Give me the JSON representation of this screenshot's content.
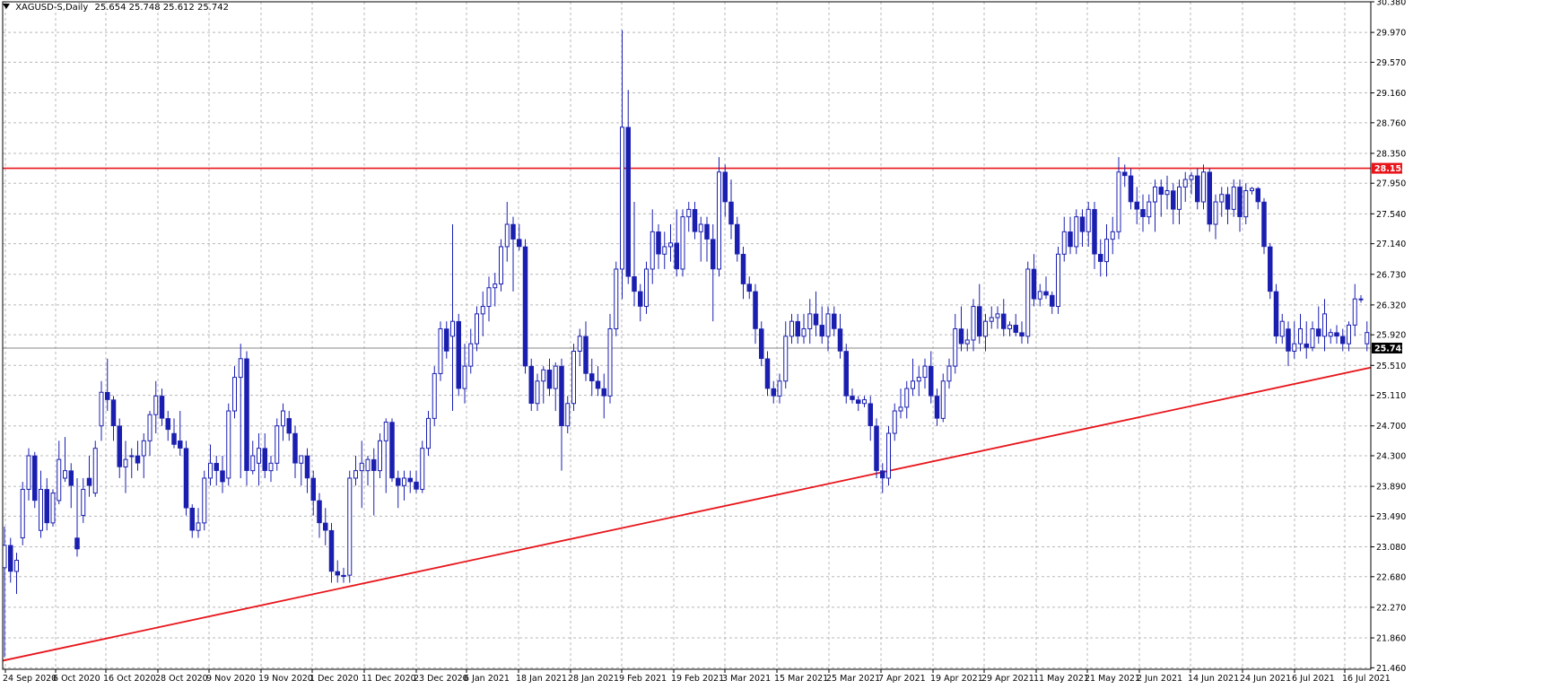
{
  "chart_data": {
    "type": "candlestick",
    "symbol_label": "XAGUSD-S,Daily",
    "ohlc_label": "25.654 25.748 25.612 25.742",
    "ylim": [
      21.44,
      30.38
    ],
    "y_ticks": [
      "30.380",
      "29.970",
      "29.570",
      "29.160",
      "28.760",
      "28.350",
      "27.950",
      "27.540",
      "27.140",
      "26.730",
      "26.320",
      "25.920",
      "25.510",
      "25.110",
      "24.700",
      "24.300",
      "23.890",
      "23.490",
      "23.080",
      "22.680",
      "22.270",
      "21.860",
      "21.460"
    ],
    "x_ticks": [
      "24 Sep 2020",
      "6 Oct 2020",
      "16 Oct 2020",
      "28 Oct 2020",
      "9 Nov 2020",
      "19 Nov 2020",
      "1 Dec 2020",
      "11 Dec 2020",
      "23 Dec 2020",
      "6 Jan 2021",
      "18 Jan 2021",
      "28 Jan 2021",
      "9 Feb 2021",
      "19 Feb 2021",
      "3 Mar 2021",
      "15 Mar 2021",
      "25 Mar 2021",
      "7 Apr 2021",
      "19 Apr 2021",
      "29 Apr 2021",
      "11 May 2021",
      "21 May 2021",
      "2 Jun 2021",
      "14 Jun 2021",
      "24 Jun 2021",
      "6 Jul 2021",
      "16 Jul 2021"
    ],
    "resistance_level": {
      "value": 28.15,
      "label": "28.153"
    },
    "current_price": {
      "value": 25.742,
      "label": "25.742"
    },
    "trendline": {
      "start": {
        "bar": 0,
        "price": 21.56
      },
      "end": {
        "bar": 225,
        "price": 25.47
      }
    },
    "grid": true,
    "colors": {
      "candle": "#1a1fb0",
      "resistance": "#e8141a",
      "trendline": "#e8141a",
      "grid": "#b8b8b8",
      "price_line": "#8a8a8a"
    },
    "ohlc": [
      [
        22.8,
        23.35,
        21.6,
        23.1
      ],
      [
        23.1,
        23.2,
        22.6,
        22.75
      ],
      [
        22.75,
        23.0,
        22.45,
        22.9
      ],
      [
        23.2,
        23.95,
        23.1,
        23.85
      ],
      [
        23.85,
        24.4,
        23.7,
        24.3
      ],
      [
        24.3,
        24.35,
        23.6,
        23.7
      ],
      [
        23.3,
        24.1,
        23.2,
        23.85
      ],
      [
        23.85,
        24.0,
        23.3,
        23.4
      ],
      [
        23.4,
        23.85,
        23.35,
        23.8
      ],
      [
        23.7,
        24.5,
        23.65,
        24.25
      ],
      [
        24.0,
        24.55,
        23.95,
        24.1
      ],
      [
        24.1,
        24.2,
        23.6,
        23.9
      ],
      [
        23.2,
        24.0,
        22.95,
        23.05
      ],
      [
        23.5,
        24.0,
        23.4,
        23.85
      ],
      [
        24.0,
        24.3,
        23.75,
        23.9
      ],
      [
        23.8,
        24.5,
        23.75,
        24.4
      ],
      [
        24.7,
        25.3,
        24.5,
        25.15
      ],
      [
        25.15,
        25.6,
        24.9,
        25.05
      ],
      [
        25.05,
        25.1,
        24.5,
        24.7
      ],
      [
        24.7,
        24.8,
        24.0,
        24.15
      ],
      [
        24.15,
        24.5,
        23.8,
        24.25
      ],
      [
        24.3,
        24.4,
        24.0,
        24.3
      ],
      [
        24.3,
        24.5,
        24.1,
        24.2
      ],
      [
        24.3,
        24.6,
        24.0,
        24.5
      ],
      [
        24.5,
        24.9,
        24.3,
        24.85
      ],
      [
        24.85,
        25.3,
        24.6,
        25.1
      ],
      [
        25.1,
        25.2,
        24.7,
        24.8
      ],
      [
        24.8,
        24.9,
        24.5,
        24.65
      ],
      [
        24.6,
        24.8,
        24.4,
        24.45
      ],
      [
        24.5,
        24.9,
        24.3,
        24.4
      ],
      [
        24.4,
        24.5,
        23.5,
        23.6
      ],
      [
        23.6,
        23.65,
        23.2,
        23.3
      ],
      [
        23.3,
        23.6,
        23.2,
        23.4
      ],
      [
        23.4,
        24.1,
        23.3,
        24.0
      ],
      [
        24.0,
        24.45,
        23.9,
        24.2
      ],
      [
        24.2,
        24.3,
        23.9,
        24.1
      ],
      [
        24.1,
        24.3,
        23.8,
        23.95
      ],
      [
        24.0,
        25.0,
        23.9,
        24.9
      ],
      [
        24.9,
        25.5,
        24.8,
        25.35
      ],
      [
        25.35,
        25.8,
        24.0,
        25.6
      ],
      [
        25.6,
        25.7,
        23.9,
        24.1
      ],
      [
        24.1,
        24.5,
        24.05,
        24.3
      ],
      [
        24.2,
        24.6,
        23.9,
        24.4
      ],
      [
        24.4,
        24.6,
        24.0,
        24.1
      ],
      [
        24.1,
        24.3,
        23.95,
        24.2
      ],
      [
        24.2,
        24.8,
        24.1,
        24.7
      ],
      [
        24.7,
        25.0,
        24.5,
        24.9
      ],
      [
        24.8,
        24.9,
        24.5,
        24.6
      ],
      [
        24.6,
        24.7,
        24.0,
        24.2
      ],
      [
        24.2,
        24.3,
        23.9,
        24.3
      ],
      [
        24.3,
        24.4,
        23.8,
        24.0
      ],
      [
        24.0,
        24.1,
        23.5,
        23.7
      ],
      [
        23.7,
        23.8,
        23.2,
        23.4
      ],
      [
        23.4,
        23.6,
        23.1,
        23.3
      ],
      [
        23.3,
        23.4,
        22.6,
        22.75
      ],
      [
        22.75,
        22.9,
        22.6,
        22.7
      ],
      [
        22.7,
        22.8,
        22.6,
        22.68
      ],
      [
        22.7,
        24.1,
        22.6,
        24.0
      ],
      [
        24.0,
        24.3,
        23.9,
        24.1
      ],
      [
        24.1,
        24.5,
        23.6,
        24.2
      ],
      [
        24.1,
        24.3,
        23.9,
        24.25
      ],
      [
        24.25,
        24.4,
        23.5,
        24.1
      ],
      [
        24.1,
        24.6,
        24.0,
        24.5
      ],
      [
        24.5,
        24.8,
        23.8,
        24.75
      ],
      [
        24.75,
        24.8,
        23.95,
        24.0
      ],
      [
        24.0,
        24.1,
        23.6,
        23.9
      ],
      [
        23.9,
        24.1,
        23.7,
        24.0
      ],
      [
        24.0,
        24.1,
        23.8,
        23.95
      ],
      [
        23.95,
        24.1,
        23.8,
        23.85
      ],
      [
        23.85,
        24.5,
        23.8,
        24.4
      ],
      [
        24.4,
        24.9,
        24.3,
        24.8
      ],
      [
        24.8,
        25.5,
        24.7,
        25.4
      ],
      [
        25.4,
        26.1,
        25.3,
        26.0
      ],
      [
        26.0,
        26.1,
        25.6,
        25.7
      ],
      [
        25.9,
        27.4,
        24.9,
        26.1
      ],
      [
        26.1,
        26.2,
        25.1,
        25.2
      ],
      [
        25.2,
        25.8,
        25.0,
        25.5
      ],
      [
        25.5,
        26.0,
        25.4,
        25.8
      ],
      [
        25.8,
        26.3,
        25.7,
        26.2
      ],
      [
        26.2,
        26.5,
        25.9,
        26.3
      ],
      [
        26.3,
        26.7,
        26.1,
        26.55
      ],
      [
        26.55,
        26.75,
        26.3,
        26.6
      ],
      [
        26.6,
        27.2,
        26.5,
        27.1
      ],
      [
        27.1,
        27.7,
        26.9,
        27.4
      ],
      [
        27.4,
        27.5,
        26.5,
        27.2
      ],
      [
        27.2,
        27.4,
        27.05,
        27.1
      ],
      [
        27.1,
        27.2,
        25.4,
        25.5
      ],
      [
        25.5,
        25.6,
        24.9,
        25.0
      ],
      [
        25.0,
        25.4,
        24.9,
        25.3
      ],
      [
        25.3,
        25.5,
        25.0,
        25.45
      ],
      [
        25.45,
        25.6,
        25.1,
        25.2
      ],
      [
        25.2,
        25.55,
        24.9,
        25.5
      ],
      [
        25.5,
        25.6,
        24.1,
        24.7
      ],
      [
        24.7,
        25.1,
        24.6,
        25.0
      ],
      [
        25.0,
        25.8,
        24.9,
        25.7
      ],
      [
        25.7,
        26.0,
        25.5,
        25.9
      ],
      [
        25.9,
        26.1,
        25.3,
        25.4
      ],
      [
        25.4,
        25.6,
        25.1,
        25.3
      ],
      [
        25.3,
        25.5,
        25.1,
        25.2
      ],
      [
        25.2,
        25.4,
        24.8,
        25.1
      ],
      [
        25.1,
        26.2,
        25.0,
        26.0
      ],
      [
        26.0,
        26.9,
        25.9,
        26.8
      ],
      [
        26.8,
        30.0,
        26.4,
        28.7
      ],
      [
        28.7,
        29.2,
        26.6,
        26.7
      ],
      [
        26.7,
        27.7,
        26.3,
        26.5
      ],
      [
        26.5,
        26.6,
        26.1,
        26.3
      ],
      [
        26.3,
        26.9,
        26.2,
        26.8
      ],
      [
        26.8,
        27.6,
        26.6,
        27.3
      ],
      [
        27.3,
        27.4,
        26.8,
        27.0
      ],
      [
        27.0,
        27.3,
        26.8,
        27.1
      ],
      [
        27.1,
        27.4,
        26.9,
        27.15
      ],
      [
        27.15,
        27.6,
        26.7,
        26.8
      ],
      [
        26.8,
        27.6,
        26.7,
        27.5
      ],
      [
        27.5,
        27.7,
        27.3,
        27.6
      ],
      [
        27.6,
        27.7,
        27.2,
        27.3
      ],
      [
        27.3,
        27.5,
        26.9,
        27.4
      ],
      [
        27.4,
        27.5,
        26.9,
        27.2
      ],
      [
        27.2,
        27.4,
        26.1,
        26.8
      ],
      [
        26.8,
        28.3,
        26.7,
        28.1
      ],
      [
        28.1,
        28.2,
        27.5,
        27.7
      ],
      [
        27.7,
        28.0,
        27.2,
        27.4
      ],
      [
        27.4,
        27.5,
        26.9,
        27.0
      ],
      [
        27.0,
        27.1,
        26.4,
        26.6
      ],
      [
        26.6,
        26.7,
        26.4,
        26.5
      ],
      [
        26.5,
        26.6,
        25.8,
        26.0
      ],
      [
        26.0,
        26.1,
        25.5,
        25.6
      ],
      [
        25.6,
        25.7,
        25.1,
        25.2
      ],
      [
        25.2,
        25.3,
        25.0,
        25.1
      ],
      [
        25.1,
        25.4,
        25.0,
        25.3
      ],
      [
        25.3,
        26.1,
        25.2,
        25.9
      ],
      [
        25.9,
        26.2,
        25.8,
        26.1
      ],
      [
        26.1,
        26.2,
        25.8,
        25.9
      ],
      [
        25.9,
        26.2,
        25.8,
        26.0
      ],
      [
        26.0,
        26.4,
        25.8,
        26.2
      ],
      [
        26.2,
        26.5,
        25.9,
        26.05
      ],
      [
        26.05,
        26.3,
        25.8,
        25.9
      ],
      [
        25.9,
        26.3,
        25.7,
        26.2
      ],
      [
        26.2,
        26.3,
        25.9,
        26.0
      ],
      [
        26.0,
        26.2,
        25.6,
        25.7
      ],
      [
        25.7,
        25.8,
        25.0,
        25.1
      ],
      [
        25.1,
        25.2,
        25.0,
        25.05
      ],
      [
        25.05,
        25.1,
        24.9,
        25.0
      ],
      [
        25.0,
        25.1,
        24.95,
        25.05
      ],
      [
        25.0,
        25.1,
        24.5,
        24.7
      ],
      [
        24.7,
        24.8,
        24.0,
        24.1
      ],
      [
        24.1,
        24.2,
        23.8,
        24.0
      ],
      [
        24.0,
        24.7,
        23.9,
        24.6
      ],
      [
        24.6,
        25.0,
        24.5,
        24.9
      ],
      [
        24.9,
        25.2,
        24.8,
        24.95
      ],
      [
        24.95,
        25.3,
        24.8,
        25.2
      ],
      [
        25.2,
        25.6,
        25.1,
        25.3
      ],
      [
        25.3,
        25.5,
        25.1,
        25.35
      ],
      [
        25.35,
        25.6,
        25.2,
        25.5
      ],
      [
        25.5,
        25.7,
        25.0,
        25.1
      ],
      [
        25.1,
        25.2,
        24.7,
        24.8
      ],
      [
        24.8,
        25.4,
        24.75,
        25.3
      ],
      [
        25.3,
        25.6,
        25.2,
        25.5
      ],
      [
        25.5,
        26.2,
        25.4,
        26.0
      ],
      [
        26.0,
        26.3,
        25.7,
        25.8
      ],
      [
        25.8,
        26.0,
        25.7,
        25.85
      ],
      [
        25.85,
        26.4,
        25.7,
        26.3
      ],
      [
        26.3,
        26.6,
        25.8,
        25.9
      ],
      [
        25.9,
        26.2,
        25.7,
        26.1
      ],
      [
        26.1,
        26.3,
        26.0,
        26.15
      ],
      [
        26.15,
        26.3,
        26.0,
        26.2
      ],
      [
        26.2,
        26.4,
        25.9,
        26.0
      ],
      [
        26.0,
        26.1,
        25.9,
        26.05
      ],
      [
        26.05,
        26.2,
        25.9,
        25.95
      ],
      [
        25.95,
        26.1,
        25.8,
        25.9
      ],
      [
        25.9,
        26.9,
        25.8,
        26.8
      ],
      [
        26.8,
        27.0,
        26.3,
        26.4
      ],
      [
        26.4,
        26.6,
        26.3,
        26.5
      ],
      [
        26.5,
        26.7,
        26.4,
        26.45
      ],
      [
        26.45,
        26.5,
        26.2,
        26.3
      ],
      [
        26.3,
        27.1,
        26.2,
        27.0
      ],
      [
        27.0,
        27.5,
        26.9,
        27.3
      ],
      [
        27.3,
        27.5,
        27.0,
        27.1
      ],
      [
        27.1,
        27.6,
        27.0,
        27.5
      ],
      [
        27.5,
        27.6,
        27.1,
        27.3
      ],
      [
        27.3,
        27.7,
        27.1,
        27.6
      ],
      [
        27.6,
        27.7,
        26.8,
        27.0
      ],
      [
        27.0,
        27.2,
        26.7,
        26.9
      ],
      [
        26.9,
        27.4,
        26.7,
        27.2
      ],
      [
        27.2,
        27.5,
        27.0,
        27.3
      ],
      [
        27.3,
        28.3,
        27.2,
        28.1
      ],
      [
        28.1,
        28.2,
        27.9,
        28.05
      ],
      [
        28.05,
        28.15,
        27.6,
        27.7
      ],
      [
        27.7,
        27.9,
        27.4,
        27.6
      ],
      [
        27.6,
        27.8,
        27.3,
        27.5
      ],
      [
        27.5,
        27.8,
        27.4,
        27.7
      ],
      [
        27.7,
        28.0,
        27.3,
        27.9
      ],
      [
        27.9,
        28.0,
        27.5,
        27.8
      ],
      [
        27.8,
        28.05,
        27.6,
        27.85
      ],
      [
        27.85,
        27.95,
        27.4,
        27.6
      ],
      [
        27.6,
        28.0,
        27.4,
        27.9
      ],
      [
        27.9,
        28.1,
        27.7,
        28.0
      ],
      [
        28.0,
        28.1,
        27.8,
        28.05
      ],
      [
        28.05,
        28.15,
        27.6,
        27.7
      ],
      [
        27.7,
        28.2,
        27.6,
        28.1
      ],
      [
        28.1,
        28.15,
        27.3,
        27.4
      ],
      [
        27.4,
        27.8,
        27.2,
        27.7
      ],
      [
        27.7,
        27.9,
        27.5,
        27.8
      ],
      [
        27.8,
        27.9,
        27.4,
        27.6
      ],
      [
        27.6,
        28.0,
        27.5,
        27.9
      ],
      [
        27.9,
        28.0,
        27.3,
        27.5
      ],
      [
        27.5,
        27.95,
        27.4,
        27.85
      ],
      [
        27.85,
        27.9,
        27.8,
        27.88
      ],
      [
        27.88,
        27.9,
        27.6,
        27.7
      ],
      [
        27.7,
        27.75,
        27.0,
        27.1
      ],
      [
        27.1,
        27.15,
        26.4,
        26.5
      ],
      [
        26.5,
        26.6,
        25.8,
        25.9
      ],
      [
        25.9,
        26.2,
        25.8,
        26.1
      ],
      [
        26.0,
        26.1,
        25.5,
        25.7
      ],
      [
        25.7,
        26.1,
        25.6,
        25.8
      ],
      [
        25.8,
        26.2,
        25.7,
        26.0
      ],
      [
        25.8,
        26.1,
        25.6,
        25.75
      ],
      [
        25.75,
        26.1,
        25.7,
        26.0
      ],
      [
        26.0,
        26.3,
        25.8,
        25.9
      ],
      [
        25.9,
        26.4,
        25.7,
        26.2
      ],
      [
        25.9,
        26.0,
        25.8,
        25.95
      ],
      [
        25.95,
        26.05,
        25.8,
        25.9
      ],
      [
        25.9,
        26.0,
        25.7,
        25.8
      ],
      [
        25.8,
        26.1,
        25.7,
        26.05
      ],
      [
        26.05,
        26.6,
        25.9,
        26.4
      ],
      [
        26.4,
        26.45,
        26.35,
        26.4
      ],
      [
        25.8,
        26.1,
        25.7,
        25.95
      ],
      [
        25.95,
        26.3,
        25.9,
        26.2
      ],
      [
        26.2,
        26.3,
        26.1,
        26.25
      ],
      [
        26.25,
        26.3,
        25.7,
        25.8
      ],
      [
        25.8,
        26.2,
        25.7,
        26.1
      ],
      [
        26.1,
        26.3,
        25.8,
        25.9
      ],
      [
        25.9,
        26.2,
        25.7,
        26.1
      ],
      [
        26.1,
        26.3,
        25.7,
        25.8
      ],
      [
        25.8,
        26.5,
        25.7,
        26.2
      ],
      [
        26.2,
        26.4,
        25.8,
        26.3
      ],
      [
        26.3,
        26.35,
        25.6,
        25.65
      ],
      [
        25.654,
        25.748,
        25.612,
        25.742
      ]
    ]
  }
}
